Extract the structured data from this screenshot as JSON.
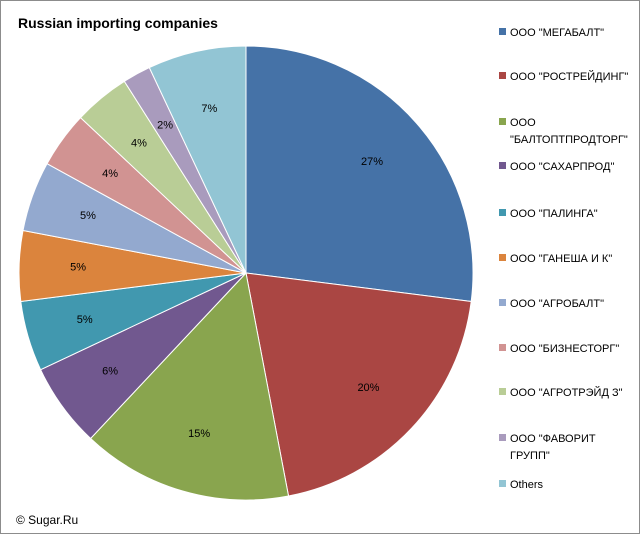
{
  "footer": "© Sugar.Ru",
  "chart_data": {
    "type": "pie",
    "title": "Russian importing companies",
    "legend_position": "right",
    "slices": [
      {
        "label": "ООО \"МЕГАБАЛТ\"",
        "value": 27,
        "value_label": "27%",
        "color": "#4572A7"
      },
      {
        "label": "ООО \"РОСТРЕЙДИНГ\"",
        "value": 20,
        "value_label": "20%",
        "color": "#AA4643"
      },
      {
        "label": "ООО\n\"БАЛТОПТПРОДТОРГ\"",
        "value": 15,
        "value_label": "15%",
        "color": "#89A54E"
      },
      {
        "label": "ООО \"САХАРПРОД\"",
        "value": 6,
        "value_label": "6%",
        "color": "#71588F"
      },
      {
        "label": "ООО \"ПАЛИНГА\"",
        "value": 5,
        "value_label": "5%",
        "color": "#4198AF"
      },
      {
        "label": "ООО \"ГАНЕША И К\"",
        "value": 5,
        "value_label": "5%",
        "color": "#DB843D"
      },
      {
        "label": "ООО \"АГРОБАЛТ\"",
        "value": 5,
        "value_label": "5%",
        "color": "#93A9CF"
      },
      {
        "label": "ООО \"БИЗНЕСТОРГ\"",
        "value": 4,
        "value_label": "4%",
        "color": "#D19392"
      },
      {
        "label": "ООО \"АГРОТРЭЙД З\"",
        "value": 4,
        "value_label": "4%",
        "color": "#B9CD96"
      },
      {
        "label": "ООО \"ФАВОРИТ\nГРУПП\"",
        "value": 2,
        "value_label": "2%",
        "color": "#A99BBD"
      },
      {
        "label": "Others",
        "value": 7,
        "value_label": "7%",
        "color": "#92C5D4"
      }
    ]
  }
}
